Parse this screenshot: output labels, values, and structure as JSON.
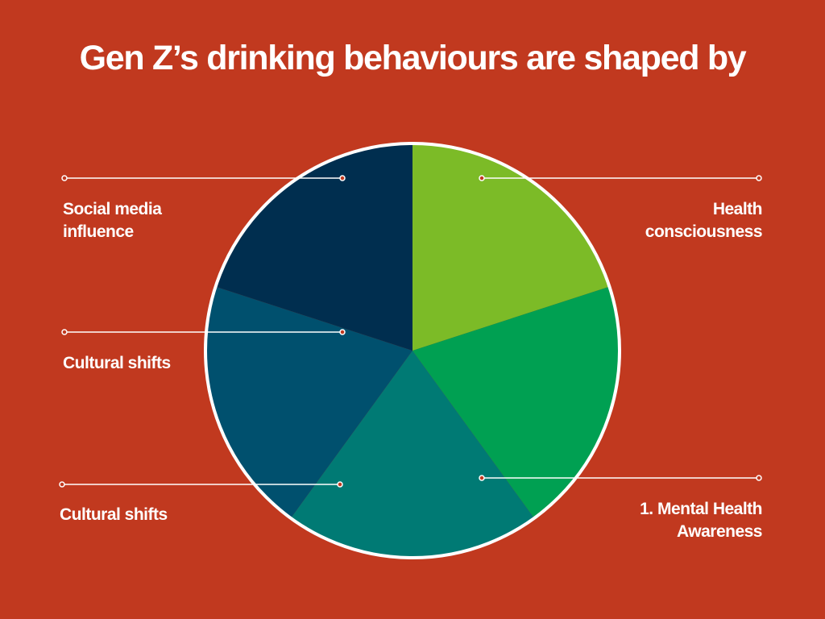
{
  "chart_data": {
    "type": "pie",
    "title": "Gen Z’s drinking behaviours are shaped by",
    "categories": [
      "Health consciousness",
      "1. Mental Health Awareness",
      "Cultural shifts",
      "Cultural shifts",
      "Social media influence"
    ],
    "values": [
      20,
      20,
      20,
      20,
      20
    ],
    "colors": [
      "#7cbb27",
      "#00a052",
      "#007a74",
      "#00506e",
      "#002e4f"
    ],
    "background": "#c1391f"
  }
}
